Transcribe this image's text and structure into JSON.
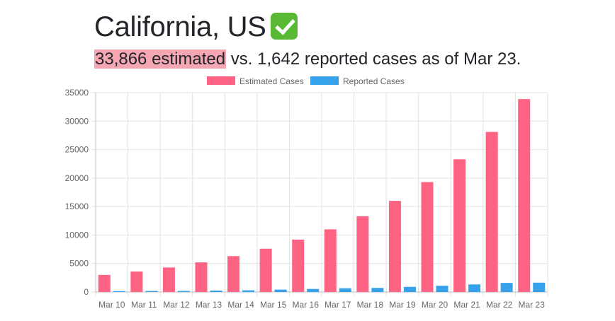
{
  "header": {
    "title": "California, US",
    "title_icon": "check-mark-emoji",
    "highlight": "33,866 estimated",
    "subtitle_rest": " vs. 1,642 reported cases as of Mar 23."
  },
  "colors": {
    "estimated": "#ff6384",
    "reported": "#36a2eb",
    "highlight": "#f4a7b2"
  },
  "chart_data": {
    "type": "bar",
    "title": "",
    "xlabel": "",
    "ylabel": "",
    "ylim": [
      0,
      35000
    ],
    "yticks": [
      "35000",
      "30000",
      "25000",
      "20000",
      "15000",
      "10000",
      "5000",
      "0"
    ],
    "grid": true,
    "legend_position": "top",
    "categories": [
      "Mar 10",
      "Mar 11",
      "Mar 12",
      "Mar 13",
      "Mar 14",
      "Mar 15",
      "Mar 16",
      "Mar 17",
      "Mar 18",
      "Mar 19",
      "Mar 20",
      "Mar 21",
      "Mar 22",
      "Mar 23"
    ],
    "series": [
      {
        "name": "Estimated Cases",
        "values": [
          3000,
          3600,
          4300,
          5200,
          6300,
          7600,
          9200,
          11000,
          13300,
          16000,
          19300,
          23300,
          28100,
          33866
        ]
      },
      {
        "name": "Reported Cases",
        "values": [
          160,
          180,
          190,
          250,
          300,
          420,
          540,
          660,
          720,
          900,
          1100,
          1330,
          1600,
          1642
        ]
      }
    ]
  }
}
